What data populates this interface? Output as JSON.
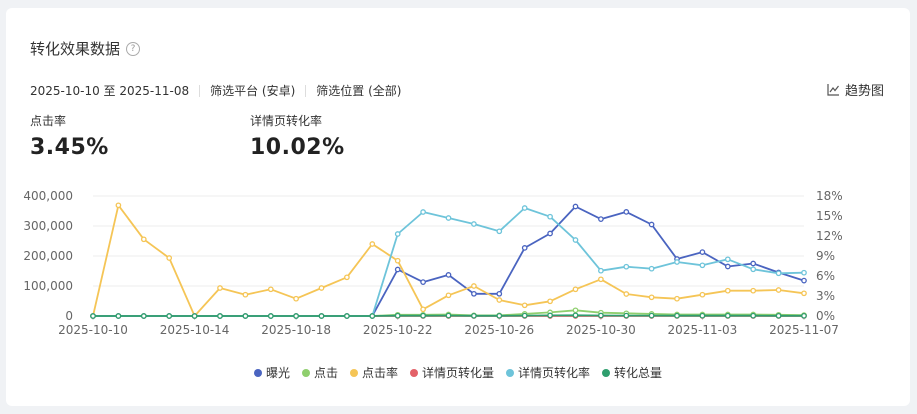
{
  "header": {
    "title": "转化效果数据",
    "help_icon": "question-circle-icon",
    "date_range": "2025-10-10 至 2025-11-08",
    "platform_filter": "筛选平台 (安卓)",
    "position_filter": "筛选位置 (全部)",
    "trend_label": "趋势图",
    "trend_icon": "line-chart-icon"
  },
  "metrics": [
    {
      "label": "点击率",
      "value": "3.45%"
    },
    {
      "label": "详情页转化率",
      "value": "10.02%"
    }
  ],
  "colors": {
    "exposure": "#4a64c0",
    "clicks": "#8fcf6e",
    "ctr": "#f5c556",
    "detail_conversions": "#e36168",
    "detail_rate": "#6ec4da",
    "total_conversions": "#2f9e6e",
    "grid": "#ececec"
  },
  "chart_data": {
    "type": "line",
    "x": [
      "2025-10-10",
      "2025-10-11",
      "2025-10-12",
      "2025-10-13",
      "2025-10-14",
      "2025-10-15",
      "2025-10-16",
      "2025-10-17",
      "2025-10-18",
      "2025-10-19",
      "2025-10-20",
      "2025-10-21",
      "2025-10-22",
      "2025-10-23",
      "2025-10-24",
      "2025-10-25",
      "2025-10-26",
      "2025-10-27",
      "2025-10-28",
      "2025-10-29",
      "2025-10-30",
      "2025-10-31",
      "2025-11-01",
      "2025-11-02",
      "2025-11-03",
      "2025-11-04",
      "2025-11-05",
      "2025-11-06",
      "2025-11-07"
    ],
    "x_tick_labels": [
      "2025-10-10",
      "2025-10-14",
      "2025-10-18",
      "2025-10-22",
      "2025-10-26",
      "2025-10-30",
      "2025-11-03",
      "2025-11-07"
    ],
    "left_axis": {
      "min": 0,
      "max": 400000,
      "ticks": [
        "0",
        "100,000",
        "200,000",
        "300,000",
        "400,000"
      ]
    },
    "right_axis": {
      "min": 0,
      "max": 18,
      "ticks": [
        "0%",
        "3%",
        "6%",
        "9%",
        "12%",
        "15%",
        "18%"
      ]
    },
    "grid": true,
    "legend_position": "bottom",
    "series": [
      {
        "name": "曝光",
        "axis": "left",
        "color": "#4a64c0",
        "values": [
          0,
          0,
          0,
          0,
          0,
          0,
          0,
          0,
          0,
          0,
          0,
          0,
          155000,
          113000,
          137000,
          74000,
          74000,
          227000,
          275000,
          365000,
          323000,
          347000,
          305000,
          190000,
          213000,
          165000,
          175000,
          145000,
          118000
        ]
      },
      {
        "name": "点击",
        "axis": "left",
        "color": "#8fcf6e",
        "values": [
          0,
          0,
          0,
          0,
          0,
          0,
          0,
          0,
          0,
          0,
          0,
          0,
          4000,
          4000,
          5000,
          2000,
          2000,
          7000,
          12000,
          19000,
          11000,
          9000,
          7000,
          5000,
          5000,
          5000,
          5000,
          4000,
          3000
        ]
      },
      {
        "name": "点击率",
        "axis": "right",
        "color": "#f5c556",
        "values": [
          0,
          16.6,
          11.5,
          8.7,
          0,
          4.2,
          3.2,
          4.0,
          2.6,
          4.2,
          5.8,
          10.8,
          8.3,
          1.0,
          3.1,
          4.5,
          2.4,
          1.6,
          2.2,
          4.0,
          5.5,
          3.3,
          2.8,
          2.6,
          3.2,
          3.8,
          3.8,
          3.9,
          3.4
        ]
      },
      {
        "name": "详情页转化量",
        "axis": "left",
        "color": "#e36168",
        "values": [
          0,
          0,
          0,
          0,
          0,
          0,
          0,
          0,
          0,
          0,
          0,
          0,
          0,
          0,
          0,
          0,
          0,
          0,
          0,
          0,
          0,
          0,
          0,
          0,
          0,
          0,
          0,
          0,
          0
        ]
      },
      {
        "name": "详情页转化率",
        "axis": "right",
        "color": "#6ec4da",
        "values": [
          0,
          0,
          0,
          0,
          0,
          0,
          0,
          0,
          0,
          0,
          0,
          0,
          12.3,
          15.6,
          14.7,
          13.8,
          12.7,
          16.2,
          14.9,
          11.4,
          6.8,
          7.4,
          7.1,
          8.1,
          7.6,
          8.5,
          7.0,
          6.4,
          6.5
        ]
      },
      {
        "name": "转化总量",
        "axis": "left",
        "color": "#2f9e6e",
        "values": [
          0,
          0,
          0,
          0,
          0,
          0,
          0,
          0,
          0,
          0,
          0,
          0,
          1000,
          1000,
          1500,
          700,
          700,
          1500,
          2000,
          2500,
          1800,
          1500,
          1200,
          1000,
          1000,
          1000,
          1000,
          800,
          700
        ]
      }
    ]
  }
}
